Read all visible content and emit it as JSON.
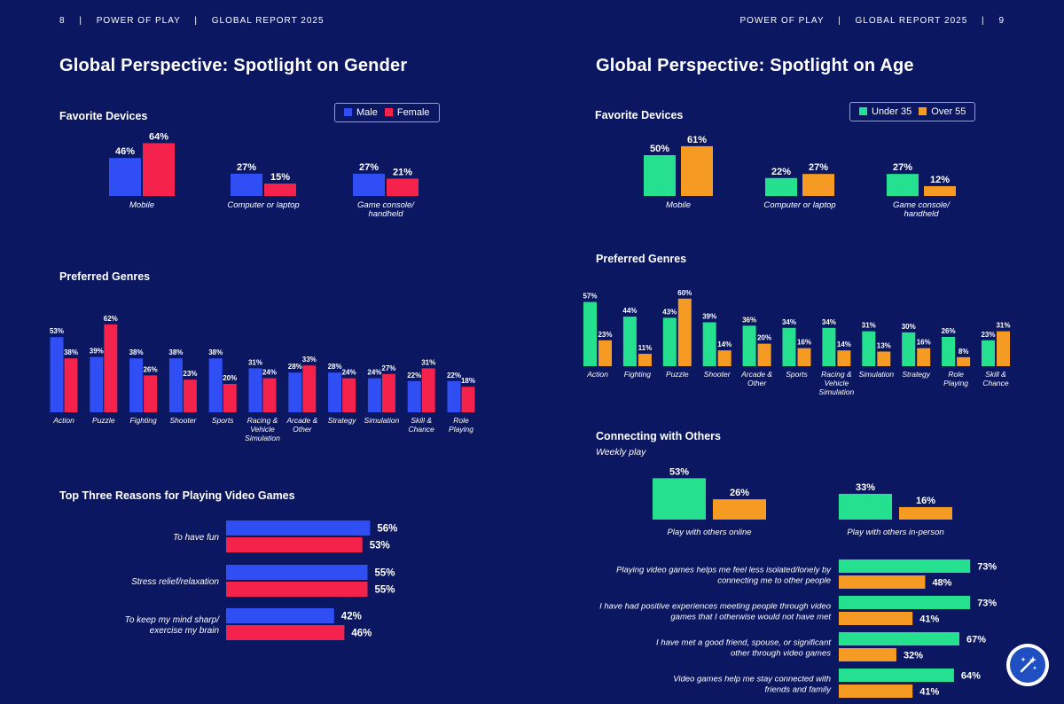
{
  "header": {
    "left_page": "8",
    "left_brand": "POWER OF PLAY",
    "left_report": "GLOBAL REPORT 2025",
    "right_brand": "POWER OF PLAY",
    "right_report": "GLOBAL REPORT 2025",
    "right_page": "9",
    "separator": "|"
  },
  "gender": {
    "title": "Global Perspective: Spotlight on Gender",
    "legend": [
      {
        "label": "Male",
        "color": "#2f4ff5"
      },
      {
        "label": "Female",
        "color": "#f5224b"
      }
    ],
    "devices_title": "Favorite Devices",
    "genres_title": "Preferred Genres",
    "reasons_title": "Top Three Reasons for Playing Video Games"
  },
  "age": {
    "title": "Global Perspective: Spotlight on Age",
    "legend": [
      {
        "label": "Under 35",
        "color": "#25e08f"
      },
      {
        "label": "Over 55",
        "color": "#f59a22"
      }
    ],
    "devices_title": "Favorite Devices",
    "genres_title": "Preferred Genres",
    "connect_title": "Connecting with Others",
    "connect_subtitle": "Weekly play"
  },
  "chart_data": [
    {
      "id": "gender_devices",
      "type": "bar",
      "title": "Favorite Devices",
      "categories": [
        [
          "Mobile"
        ],
        [
          "Computer or laptop"
        ],
        [
          "Game console/",
          "handheld"
        ]
      ],
      "series": [
        {
          "name": "Male",
          "values": [
            46,
            27,
            27
          ]
        },
        {
          "name": "Female",
          "values": [
            64,
            15,
            21
          ]
        }
      ],
      "unit": "%"
    },
    {
      "id": "gender_genres",
      "type": "bar",
      "title": "Preferred Genres",
      "categories": [
        [
          "Action"
        ],
        [
          "Puzzle"
        ],
        [
          "Fighting"
        ],
        [
          "Shooter"
        ],
        [
          "Sports"
        ],
        [
          "Racing &",
          "Vehicle",
          "Simulation"
        ],
        [
          "Arcade &",
          "Other"
        ],
        [
          "Strategy"
        ],
        [
          "Simulation"
        ],
        [
          "Skill &",
          "Chance"
        ],
        [
          "Role",
          "Playing"
        ]
      ],
      "series": [
        {
          "name": "Male",
          "values": [
            53,
            39,
            38,
            38,
            38,
            31,
            28,
            28,
            24,
            22,
            22
          ]
        },
        {
          "name": "Female",
          "values": [
            38,
            62,
            26,
            23,
            20,
            24,
            33,
            24,
            27,
            31,
            18
          ]
        }
      ],
      "unit": "%"
    },
    {
      "id": "gender_reasons",
      "type": "bar",
      "orientation": "horizontal",
      "title": "Top Three Reasons for Playing Video Games",
      "categories": [
        [
          "To have fun"
        ],
        [
          "Stress relief/relaxation"
        ],
        [
          "To keep my mind sharp/",
          "exercise my brain"
        ]
      ],
      "series": [
        {
          "name": "Male",
          "values": [
            56,
            55,
            42
          ]
        },
        {
          "name": "Female",
          "values": [
            53,
            55,
            46
          ]
        }
      ],
      "unit": "%"
    },
    {
      "id": "age_devices",
      "type": "bar",
      "title": "Favorite Devices",
      "categories": [
        [
          "Mobile"
        ],
        [
          "Computer or laptop"
        ],
        [
          "Game console/",
          "handheld"
        ]
      ],
      "series": [
        {
          "name": "Under 35",
          "values": [
            50,
            22,
            27
          ]
        },
        {
          "name": "Over 55",
          "values": [
            61,
            27,
            12
          ]
        }
      ],
      "unit": "%"
    },
    {
      "id": "age_genres",
      "type": "bar",
      "title": "Preferred Genres",
      "categories": [
        [
          "Action"
        ],
        [
          "Fighting"
        ],
        [
          "Puzzle"
        ],
        [
          "Shooter"
        ],
        [
          "Arcade &",
          "Other"
        ],
        [
          "Sports"
        ],
        [
          "Racing &",
          "Vehicle",
          "Simulation"
        ],
        [
          "Simulation"
        ],
        [
          "Strategy"
        ],
        [
          "Role",
          "Playing"
        ],
        [
          "Skill &",
          "Chance"
        ]
      ],
      "series": [
        {
          "name": "Under 35",
          "values": [
            57,
            44,
            43,
            39,
            36,
            34,
            34,
            31,
            30,
            26,
            23
          ]
        },
        {
          "name": "Over 55",
          "values": [
            23,
            11,
            60,
            14,
            20,
            16,
            14,
            13,
            16,
            8,
            31
          ]
        }
      ],
      "unit": "%"
    },
    {
      "id": "age_weekly",
      "type": "bar",
      "title": "Connecting with Others",
      "subtitle": "Weekly play",
      "categories": [
        [
          "Play with others online"
        ],
        [
          "Play with others in-person"
        ]
      ],
      "series": [
        {
          "name": "Under 35",
          "values": [
            53,
            33
          ]
        },
        {
          "name": "Over 55",
          "values": [
            26,
            16
          ]
        }
      ],
      "unit": "%"
    },
    {
      "id": "age_statements",
      "type": "bar",
      "orientation": "horizontal",
      "categories": [
        [
          "Playing video games helps me feel less isolated/lonely by",
          "connecting me to other people"
        ],
        [
          "I have had positive experiences meeting people through video",
          "games that I otherwise would not have met"
        ],
        [
          "I have met a good friend, spouse, or significant",
          "other through video games"
        ],
        [
          "Video games help me stay connected with",
          "friends and family"
        ]
      ],
      "series": [
        {
          "name": "Under 35",
          "values": [
            73,
            73,
            67,
            64
          ]
        },
        {
          "name": "Over 55",
          "values": [
            48,
            41,
            32,
            41
          ]
        }
      ],
      "unit": "%"
    }
  ],
  "fab": {
    "icon": "magic-wand-icon"
  }
}
